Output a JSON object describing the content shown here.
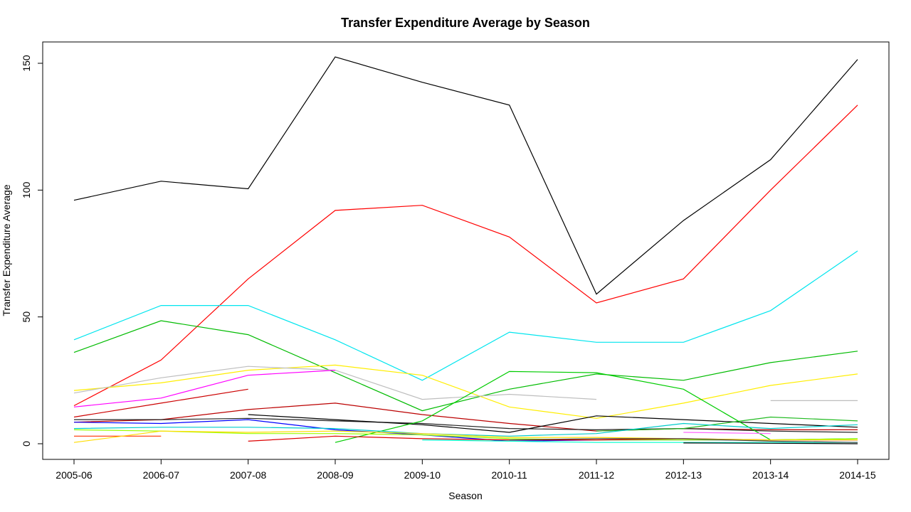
{
  "chart_data": {
    "type": "line",
    "title": "Transfer Expenditure Average by Season",
    "xlabel": "Season",
    "ylabel": "Transfer Expenditure Average",
    "categories": [
      "2005-06",
      "2006-07",
      "2007-08",
      "2008-09",
      "2009-10",
      "2010-11",
      "2011-12",
      "2012-13",
      "2013-14",
      "2014-15"
    ],
    "ylim": [
      -6,
      160
    ],
    "yticks": [
      0,
      50,
      100,
      150
    ],
    "grid": false,
    "legend": "none",
    "series": [
      {
        "color": "#000000",
        "values": [
          96,
          103.5,
          100.5,
          152.5,
          142.5,
          133.5,
          59,
          88,
          112,
          151.5
        ]
      },
      {
        "color": "#ff0000",
        "values": [
          15,
          33,
          65,
          92,
          94,
          81.5,
          55.5,
          65,
          100,
          133.5
        ]
      },
      {
        "color": "#00e5ee",
        "values": [
          41,
          54.5,
          54.5,
          41,
          25,
          44,
          40,
          40,
          52.5,
          76
        ]
      },
      {
        "color": "#00bb00",
        "values": [
          36,
          48.5,
          43,
          28,
          13,
          21.5,
          27.5,
          25,
          32,
          36.5
        ]
      },
      {
        "color": "#ffee00",
        "values": [
          21,
          24,
          29,
          31,
          27,
          14.5,
          10,
          16,
          23,
          27.5
        ]
      },
      {
        "color": "#bebebe",
        "values": [
          20,
          26,
          30.5,
          29,
          17.5,
          19.5,
          17.5,
          null,
          17,
          17
        ]
      },
      {
        "color": "#ff00ff",
        "values": [
          14.5,
          18,
          27,
          29,
          null,
          null,
          null,
          null,
          null,
          null
        ]
      },
      {
        "color": "#cc0000",
        "values": [
          10.5,
          16,
          21.5,
          null,
          null,
          null,
          null,
          null,
          null,
          null
        ]
      },
      {
        "color": "#bb0000",
        "values": [
          8.5,
          9.5,
          13.5,
          16,
          11.5,
          8,
          5,
          6,
          5.5,
          5.5
        ]
      },
      {
        "color": "#222222",
        "values": [
          9.5,
          9.5,
          10,
          9,
          8,
          6,
          5.5,
          6,
          5,
          4.5
        ]
      },
      {
        "color": "#000000",
        "values": [
          null,
          null,
          11.5,
          9.5,
          7.5,
          4.5,
          11,
          9.5,
          8,
          6.5
        ]
      },
      {
        "color": "#0000ff",
        "values": [
          8.5,
          8,
          9.5,
          5.5,
          3.5,
          1,
          1.5,
          1.5,
          1.5,
          1.5
        ]
      },
      {
        "color": "#00cc00",
        "values": [
          null,
          null,
          null,
          0.5,
          9,
          28.5,
          28,
          21.5,
          1.5,
          2
        ]
      },
      {
        "color": "#22bb22",
        "values": [
          null,
          null,
          null,
          null,
          null,
          null,
          5,
          6,
          10.5,
          9
        ]
      },
      {
        "color": "#00cccc",
        "values": [
          6,
          6.5,
          6.5,
          6,
          4,
          3,
          4,
          8,
          6,
          7.5
        ]
      },
      {
        "color": "#99ff00",
        "values": [
          5.5,
          5,
          4,
          4,
          3.5,
          2,
          1.5,
          1.5,
          1.5,
          2
        ]
      },
      {
        "color": "#ff3300",
        "values": [
          3,
          3,
          null,
          null,
          null,
          null,
          null,
          null,
          null,
          null
        ]
      },
      {
        "color": "#dd0000",
        "values": [
          null,
          null,
          1,
          3,
          2,
          1.5,
          1.5,
          2,
          1.5,
          1.5
        ]
      },
      {
        "color": "#ffdd00",
        "values": [
          0.5,
          5,
          4.5,
          5,
          4,
          2.5,
          2.5,
          2,
          1.5,
          1.5
        ]
      },
      {
        "color": "#ff66ff",
        "values": [
          null,
          null,
          null,
          null,
          null,
          null,
          null,
          4.5,
          4,
          null
        ]
      },
      {
        "color": "#00ffcc",
        "values": [
          null,
          null,
          null,
          null,
          1.5,
          1,
          0.5,
          0.5,
          0.5,
          0.5
        ]
      },
      {
        "color": "#444444",
        "values": [
          null,
          null,
          null,
          null,
          null,
          1.5,
          2,
          2,
          1,
          0.5
        ]
      },
      {
        "color": "#000000",
        "values": [
          null,
          null,
          null,
          null,
          null,
          null,
          null,
          0.3,
          0.2,
          0
        ]
      }
    ]
  }
}
